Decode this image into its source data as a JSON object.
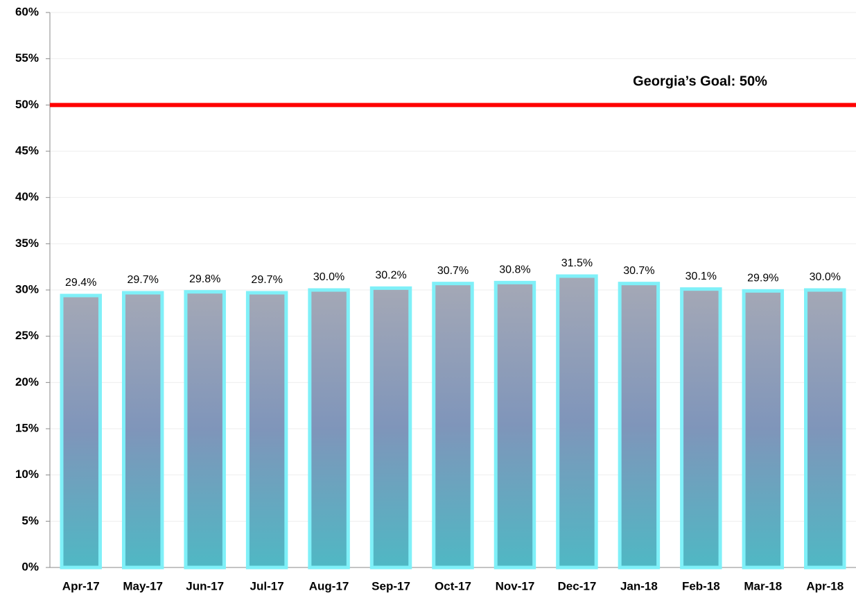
{
  "chart_data": {
    "type": "bar",
    "categories": [
      "Apr-17",
      "May-17",
      "Jun-17",
      "Jul-17",
      "Aug-17",
      "Sep-17",
      "Oct-17",
      "Nov-17",
      "Dec-17",
      "Jan-18",
      "Feb-18",
      "Mar-18",
      "Apr-18"
    ],
    "values": [
      29.4,
      29.7,
      29.8,
      29.7,
      30.0,
      30.2,
      30.7,
      30.8,
      31.5,
      30.7,
      30.1,
      29.9,
      30.0
    ],
    "value_labels": [
      "29.4%",
      "29.7%",
      "29.8%",
      "29.7%",
      "30.0%",
      "30.2%",
      "30.7%",
      "30.8%",
      "31.5%",
      "30.7%",
      "30.1%",
      "29.9%",
      "30.0%"
    ],
    "color": "#8a9cbc",
    "ylim": [
      0,
      60
    ],
    "yticks": [
      {
        "value": 0,
        "label": "0%"
      },
      {
        "value": 5,
        "label": "5%"
      },
      {
        "value": 10,
        "label": "10%"
      },
      {
        "value": 15,
        "label": "15%"
      },
      {
        "value": 20,
        "label": "20%"
      },
      {
        "value": 25,
        "label": "25%"
      },
      {
        "value": 30,
        "label": "30%"
      },
      {
        "value": 35,
        "label": "35%"
      },
      {
        "value": 40,
        "label": "40%"
      },
      {
        "value": 45,
        "label": "45%"
      },
      {
        "value": 50,
        "label": "50%"
      },
      {
        "value": 55,
        "label": "55%"
      },
      {
        "value": 60,
        "label": "60%"
      }
    ],
    "grid": true,
    "goal": {
      "value": 50,
      "label": "Georgia’s Goal:  50%",
      "color": "#ff0000"
    }
  }
}
